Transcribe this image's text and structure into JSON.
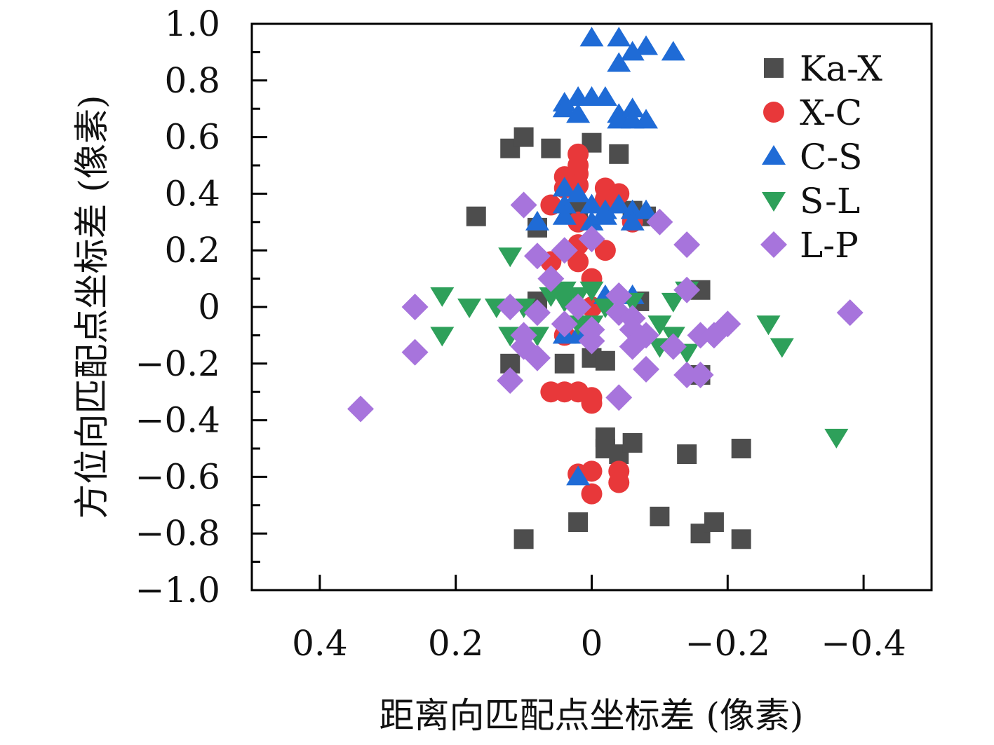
{
  "chart_data": {
    "type": "scatter",
    "title": "",
    "xlabel": "距离向匹配点坐标差 (像素)",
    "ylabel": "方位向匹配点坐标差 (像素)",
    "xlim": [
      0.5,
      -0.5
    ],
    "ylim": [
      -1.0,
      1.0
    ],
    "x_ticks": [
      0.4,
      0.2,
      0,
      -0.2,
      -0.4
    ],
    "x_tick_labels": [
      "0.4",
      "0.2",
      "0",
      "−0.2",
      "−0.4"
    ],
    "y_ticks": [
      1.0,
      0.8,
      0.6,
      0.4,
      0.2,
      0,
      -0.2,
      -0.4,
      -0.6,
      -0.8,
      -1.0
    ],
    "y_tick_labels": [
      "1.0",
      "0.8",
      "0.6",
      "0.4",
      "0.2",
      "0",
      "−0.2",
      "−0.4",
      "−0.6",
      "−0.8",
      "−1.0"
    ],
    "grid": false,
    "legend_position": "top-right",
    "series": [
      {
        "name": "Ka-X",
        "marker": "square",
        "color": "#4d4d4d",
        "points": [
          [
            0.12,
            0.56
          ],
          [
            0.1,
            0.6
          ],
          [
            0.06,
            0.56
          ],
          [
            0.0,
            0.58
          ],
          [
            -0.04,
            0.54
          ],
          [
            0.17,
            0.32
          ],
          [
            0.08,
            0.28
          ],
          [
            0.02,
            0.34
          ],
          [
            -0.06,
            0.34
          ],
          [
            -0.08,
            0.32
          ],
          [
            -0.16,
            0.06
          ],
          [
            -0.07,
            0.02
          ],
          [
            0.08,
            0.02
          ],
          [
            0.12,
            -0.2
          ],
          [
            0.04,
            -0.2
          ],
          [
            0.0,
            -0.18
          ],
          [
            -0.02,
            -0.19
          ],
          [
            -0.16,
            -0.24
          ],
          [
            -0.02,
            -0.46
          ],
          [
            -0.02,
            -0.5
          ],
          [
            -0.04,
            -0.52
          ],
          [
            -0.06,
            -0.48
          ],
          [
            -0.14,
            -0.52
          ],
          [
            -0.22,
            -0.5
          ],
          [
            0.1,
            -0.82
          ],
          [
            0.02,
            -0.76
          ],
          [
            -0.1,
            -0.74
          ],
          [
            -0.16,
            -0.8
          ],
          [
            -0.18,
            -0.76
          ],
          [
            -0.22,
            -0.82
          ]
        ]
      },
      {
        "name": "X-C",
        "marker": "circle",
        "color": "#e8383a",
        "points": [
          [
            0.02,
            0.54
          ],
          [
            0.02,
            0.5
          ],
          [
            0.02,
            0.47
          ],
          [
            0.04,
            0.46
          ],
          [
            0.02,
            0.43
          ],
          [
            0.04,
            0.42
          ],
          [
            -0.02,
            0.42
          ],
          [
            -0.04,
            0.4
          ],
          [
            -0.02,
            0.38
          ],
          [
            0.06,
            0.36
          ],
          [
            0.02,
            0.3
          ],
          [
            -0.06,
            0.3
          ],
          [
            0.02,
            0.22
          ],
          [
            -0.02,
            0.2
          ],
          [
            0.06,
            0.16
          ],
          [
            0.02,
            0.16
          ],
          [
            0.0,
            0.1
          ],
          [
            0.0,
            0.0
          ],
          [
            0.04,
            -0.1
          ],
          [
            0.06,
            -0.3
          ],
          [
            0.04,
            -0.3
          ],
          [
            0.02,
            -0.3
          ],
          [
            0.0,
            -0.32
          ],
          [
            0.0,
            -0.34
          ],
          [
            0.0,
            -0.58
          ],
          [
            0.02,
            -0.59
          ],
          [
            -0.04,
            -0.58
          ],
          [
            -0.04,
            -0.62
          ],
          [
            0.0,
            -0.66
          ]
        ]
      },
      {
        "name": "C-S",
        "marker": "triangle-up",
        "color": "#1f6bd6",
        "points": [
          [
            0.0,
            0.95
          ],
          [
            -0.04,
            0.95
          ],
          [
            -0.06,
            0.9
          ],
          [
            -0.08,
            0.92
          ],
          [
            -0.12,
            0.9
          ],
          [
            -0.04,
            0.86
          ],
          [
            0.02,
            0.74
          ],
          [
            0.0,
            0.74
          ],
          [
            -0.02,
            0.74
          ],
          [
            0.04,
            0.72
          ],
          [
            0.04,
            0.7
          ],
          [
            0.02,
            0.68
          ],
          [
            -0.04,
            0.68
          ],
          [
            -0.06,
            0.7
          ],
          [
            -0.04,
            0.66
          ],
          [
            -0.08,
            0.66
          ],
          [
            -0.06,
            0.66
          ],
          [
            0.04,
            0.42
          ],
          [
            0.02,
            0.4
          ],
          [
            0.04,
            0.36
          ],
          [
            0.0,
            0.36
          ],
          [
            -0.02,
            0.34
          ],
          [
            -0.04,
            0.36
          ],
          [
            -0.06,
            0.34
          ],
          [
            -0.08,
            0.34
          ],
          [
            0.08,
            0.3
          ],
          [
            0.04,
            0.32
          ],
          [
            0.0,
            0.3
          ],
          [
            -0.02,
            0.32
          ],
          [
            -0.06,
            0.3
          ],
          [
            -0.02,
            0.04
          ],
          [
            -0.06,
            0.04
          ],
          [
            0.04,
            -0.1
          ],
          [
            0.02,
            -0.1
          ],
          [
            0.02,
            -0.6
          ]
        ]
      },
      {
        "name": "S-L",
        "marker": "triangle-down",
        "color": "#2ea05a",
        "points": [
          [
            0.12,
            0.18
          ],
          [
            0.22,
            0.04
          ],
          [
            0.18,
            0.0
          ],
          [
            0.14,
            0.0
          ],
          [
            0.12,
            0.0
          ],
          [
            0.1,
            0.0
          ],
          [
            0.06,
            0.04
          ],
          [
            0.04,
            0.06
          ],
          [
            0.02,
            0.04
          ],
          [
            0.0,
            0.06
          ],
          [
            0.04,
            0.02
          ],
          [
            -0.02,
            0.0
          ],
          [
            -0.06,
            0.02
          ],
          [
            -0.12,
            0.02
          ],
          [
            -0.14,
            0.06
          ],
          [
            0.22,
            -0.1
          ],
          [
            0.12,
            -0.1
          ],
          [
            0.08,
            -0.1
          ],
          [
            0.02,
            -0.06
          ],
          [
            0.0,
            -0.06
          ],
          [
            -0.1,
            -0.06
          ],
          [
            -0.12,
            -0.1
          ],
          [
            -0.14,
            -0.16
          ],
          [
            -0.1,
            -0.14
          ],
          [
            -0.26,
            -0.06
          ],
          [
            -0.28,
            -0.14
          ],
          [
            -0.36,
            -0.46
          ]
        ]
      },
      {
        "name": "L-P",
        "marker": "diamond",
        "color": "#a774dc",
        "points": [
          [
            0.1,
            0.36
          ],
          [
            -0.1,
            0.3
          ],
          [
            -0.14,
            0.22
          ],
          [
            0.08,
            0.18
          ],
          [
            0.04,
            0.2
          ],
          [
            0.0,
            0.24
          ],
          [
            0.06,
            0.1
          ],
          [
            0.26,
            0.0
          ],
          [
            0.12,
            0.0
          ],
          [
            0.08,
            -0.02
          ],
          [
            0.02,
            0.0
          ],
          [
            -0.04,
            0.04
          ],
          [
            -0.04,
            -0.02
          ],
          [
            -0.06,
            -0.04
          ],
          [
            -0.14,
            0.06
          ],
          [
            0.1,
            -0.1
          ],
          [
            0.04,
            -0.06
          ],
          [
            0.0,
            -0.08
          ],
          [
            0.0,
            -0.12
          ],
          [
            -0.06,
            -0.08
          ],
          [
            -0.08,
            -0.1
          ],
          [
            -0.16,
            -0.1
          ],
          [
            -0.18,
            -0.1
          ],
          [
            -0.2,
            -0.06
          ],
          [
            0.1,
            -0.14
          ],
          [
            0.08,
            -0.18
          ],
          [
            -0.06,
            -0.14
          ],
          [
            -0.12,
            -0.14
          ],
          [
            0.26,
            -0.16
          ],
          [
            0.12,
            -0.26
          ],
          [
            -0.08,
            -0.22
          ],
          [
            -0.14,
            -0.24
          ],
          [
            -0.16,
            -0.24
          ],
          [
            -0.04,
            -0.32
          ],
          [
            0.34,
            -0.36
          ],
          [
            -0.38,
            -0.02
          ]
        ]
      }
    ]
  }
}
